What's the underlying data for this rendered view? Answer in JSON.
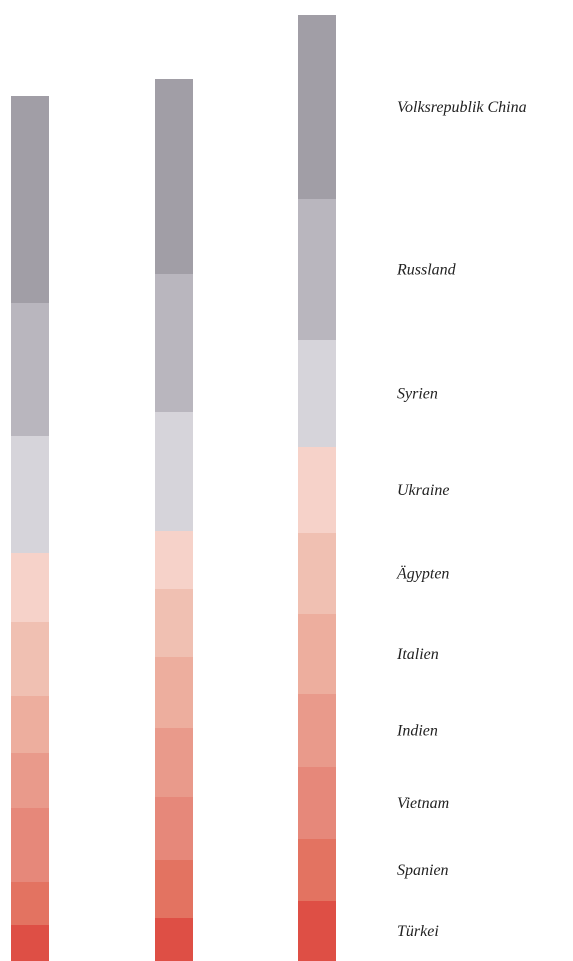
{
  "chart_data": {
    "type": "bar",
    "stacked": true,
    "title": "",
    "xlabel": "",
    "ylabel": "",
    "axes_visible": false,
    "grid": false,
    "legend_placement": "right",
    "categories": [
      "",
      "",
      ""
    ],
    "series": [
      {
        "name": "Türkei",
        "color": "#DE4F45",
        "values": [
          36,
          43,
          60
        ]
      },
      {
        "name": "Spanien",
        "color": "#E37361",
        "values": [
          43,
          58,
          62
        ]
      },
      {
        "name": "Vietnam",
        "color": "#E6887A",
        "values": [
          74,
          63,
          72
        ]
      },
      {
        "name": "Indien",
        "color": "#E99A8B",
        "values": [
          55,
          69,
          73
        ]
      },
      {
        "name": "Italien",
        "color": "#EDAE9E",
        "values": [
          57,
          71,
          80
        ]
      },
      {
        "name": "Ägypten",
        "color": "#F0C0B2",
        "values": [
          74,
          68,
          81
        ]
      },
      {
        "name": "Ukraine",
        "color": "#F6D2C9",
        "values": [
          69,
          58,
          86
        ]
      },
      {
        "name": "Syrien",
        "color": "#D6D4DA",
        "values": [
          117,
          119,
          107
        ]
      },
      {
        "name": "Russland",
        "color": "#B9B6BE",
        "values": [
          133,
          138,
          141
        ]
      },
      {
        "name": "Volksrepublik China",
        "color": "#A19EA6",
        "values": [
          207,
          195,
          184
        ]
      }
    ],
    "ylim": [
      0,
      950
    ]
  }
}
